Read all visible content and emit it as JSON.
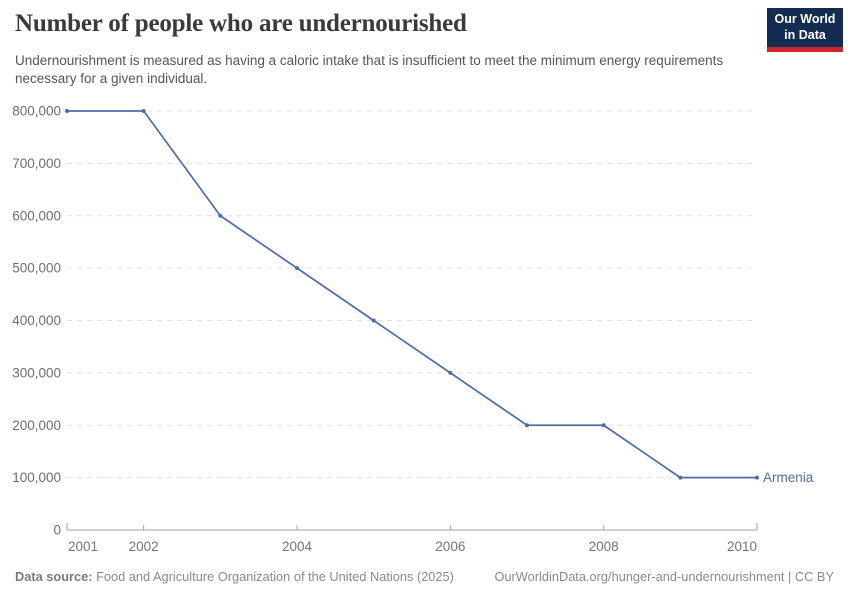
{
  "header": {
    "title": "Number of people who are undernourished",
    "subtitle": "Undernourishment is measured as having a caloric intake that is insufficient to meet the minimum energy requirements necessary for a given individual.",
    "logo": {
      "line1": "Our World",
      "line2": "in Data",
      "bg_color": "#142c52",
      "stripe_color": "#d0252e"
    }
  },
  "chart_data": {
    "type": "line",
    "title": "Number of people who are undernourished",
    "x": [
      2001,
      2002,
      2003,
      2004,
      2005,
      2006,
      2007,
      2008,
      2009,
      2010
    ],
    "series": [
      {
        "name": "Armenia",
        "color": "#4e6da8",
        "values": [
          800000,
          800000,
          600000,
          500000,
          400000,
          300000,
          200000,
          200000,
          100000,
          100000
        ]
      }
    ],
    "xlim": [
      2001,
      2010
    ],
    "ylim": [
      0,
      800000
    ],
    "x_ticks": [
      2001,
      2002,
      2004,
      2006,
      2008,
      2010
    ],
    "y_ticks": [
      0,
      100000,
      200000,
      300000,
      400000,
      500000,
      600000,
      700000,
      800000
    ],
    "grid": "horizontal-dashed",
    "legend": "end-of-line-label",
    "grid_color": "#e0e0e0",
    "axis_color": "#a3a3a3",
    "tick_label_color": "#757575"
  },
  "footer": {
    "source_label": "Data source:",
    "source_text": "Food and Agriculture Organization of the United Nations (2025)",
    "link_text": "OurWorldinData.org/hunger-and-undernourishment | CC BY"
  }
}
